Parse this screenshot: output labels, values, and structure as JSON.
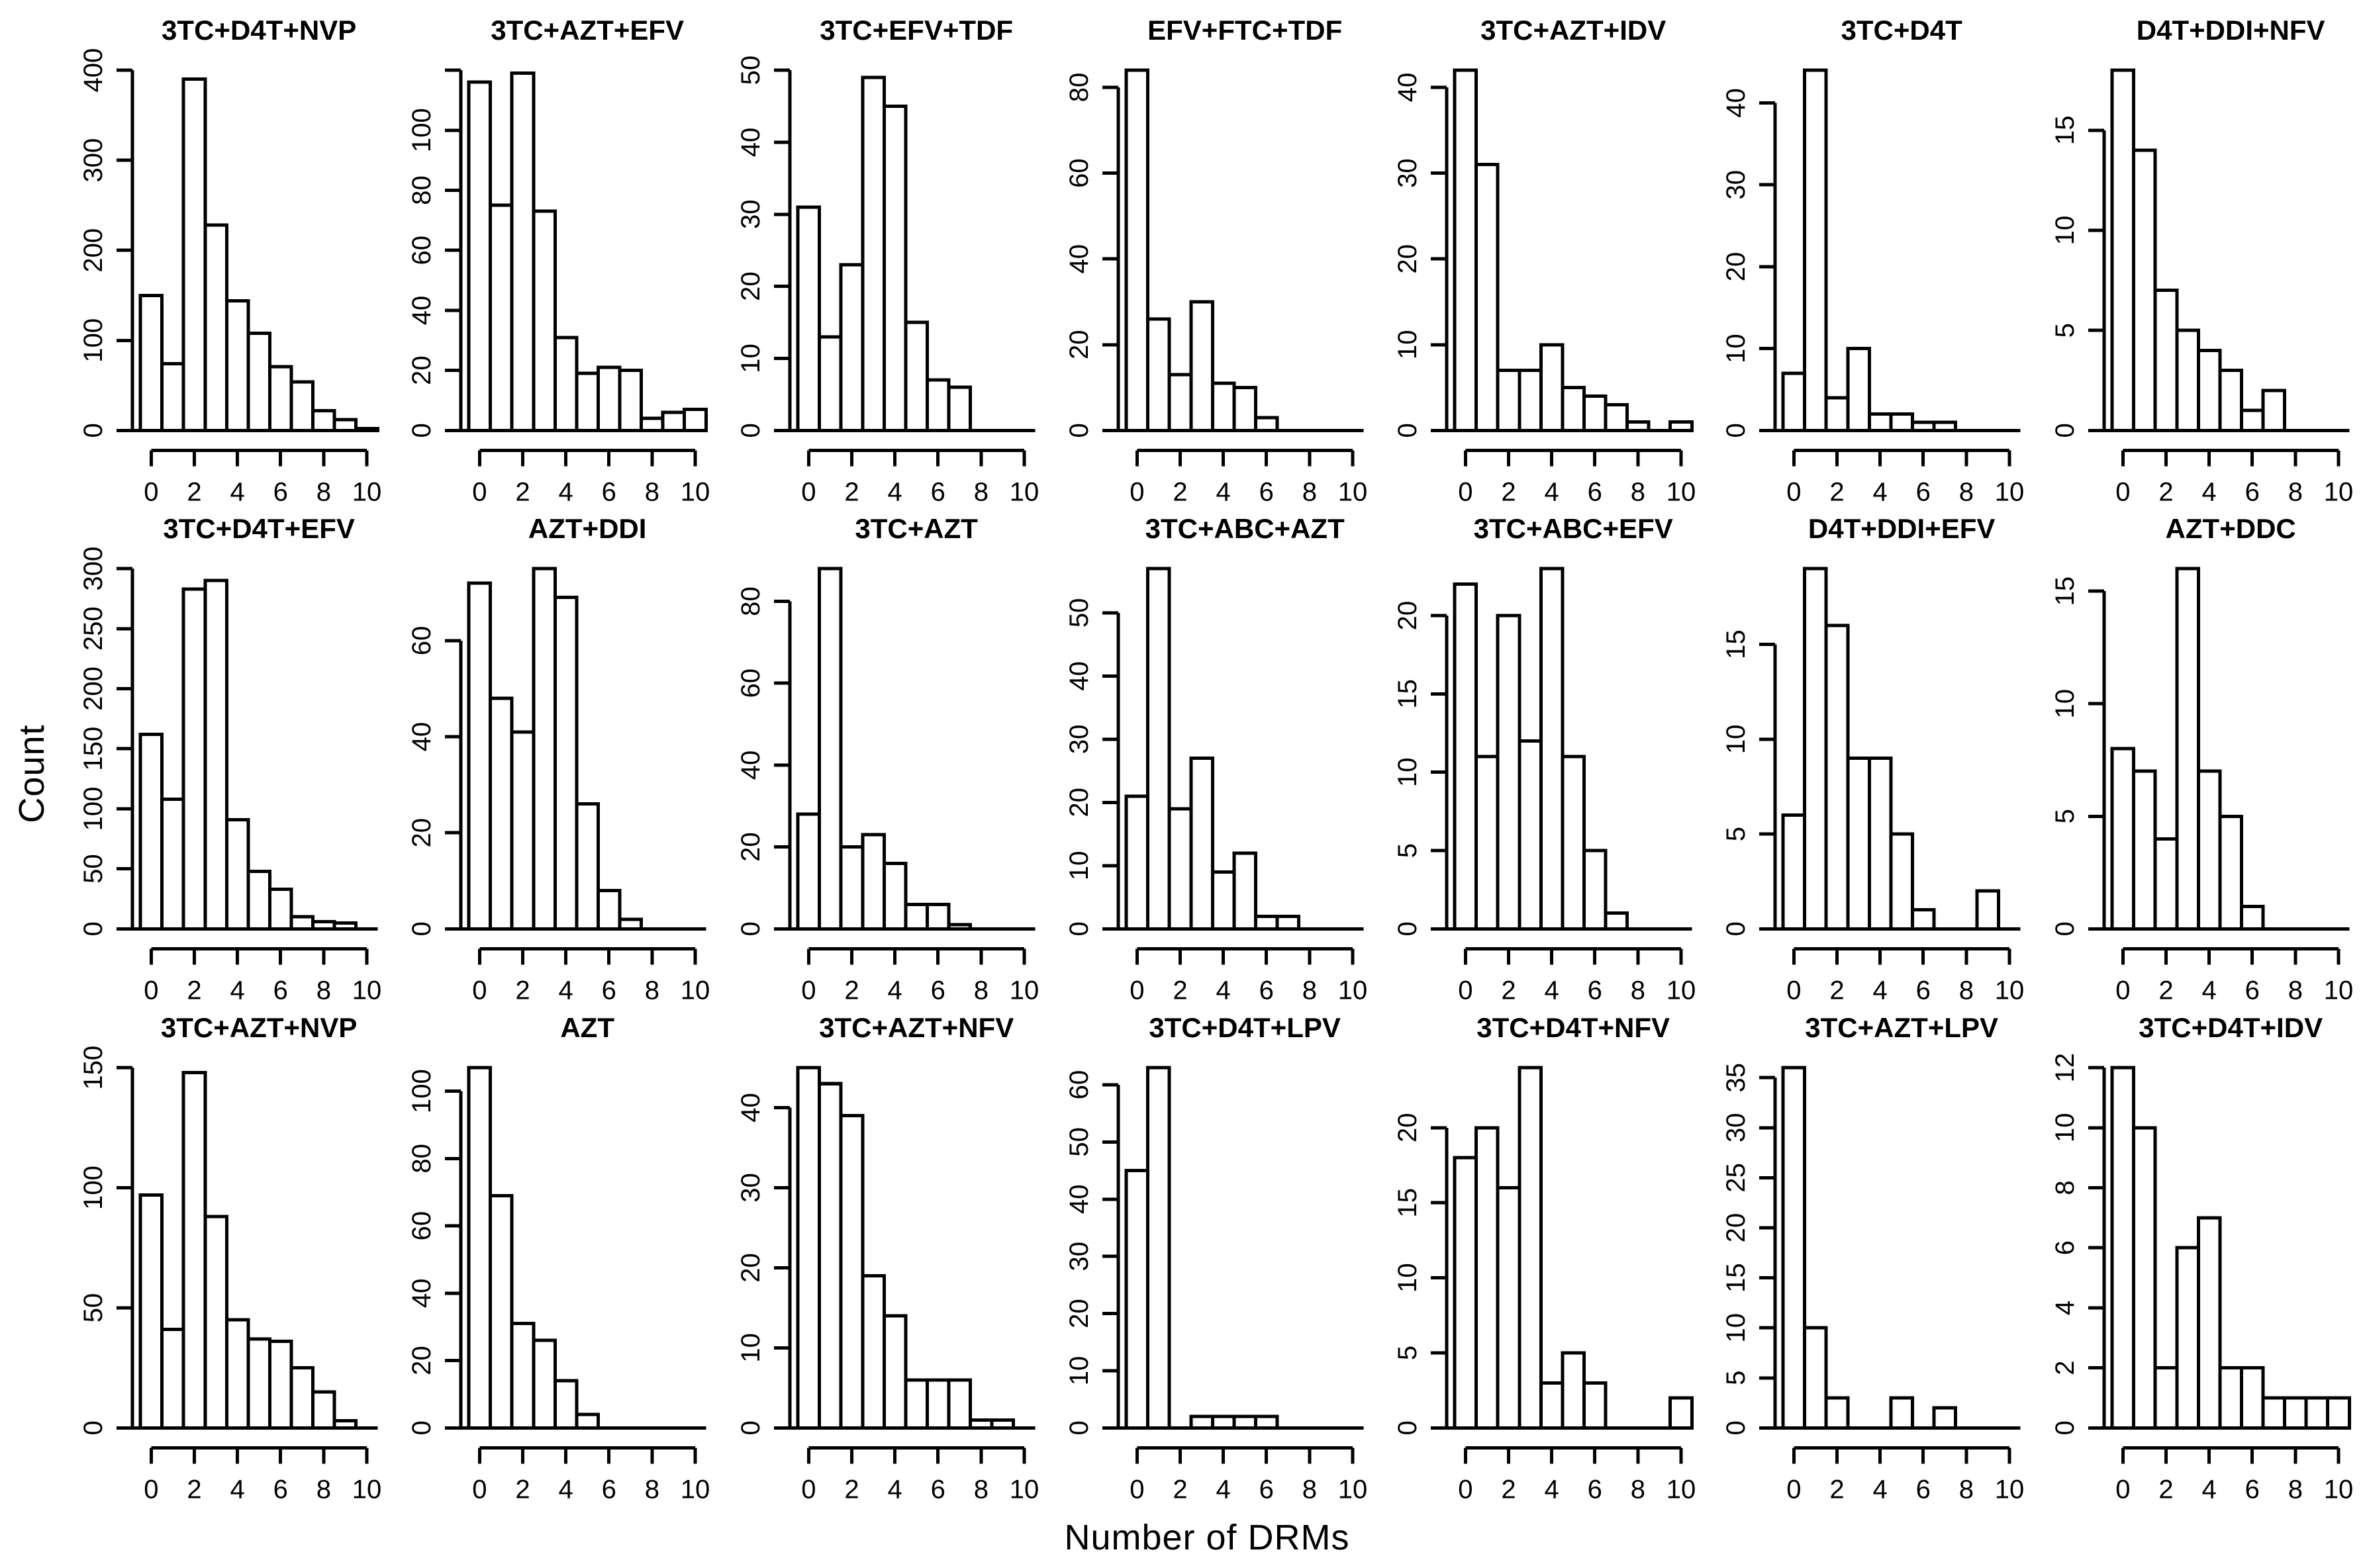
{
  "figure": {
    "ylabel": "Count",
    "xlabel": "Number of DRMs",
    "ink_color": "#000000",
    "background_color": "#ffffff"
  },
  "chart_data": {
    "type": "bar",
    "subtype": "histogram-small-multiples",
    "layout": {
      "rows": 3,
      "cols": 7,
      "grid": true
    },
    "x": [
      0,
      1,
      2,
      3,
      4,
      5,
      6,
      7,
      8,
      9,
      10
    ],
    "xticks": [
      0,
      2,
      4,
      6,
      8,
      10
    ],
    "xlabel": "Number of DRMs",
    "ylabel": "Count",
    "legend": "none",
    "panels": [
      {
        "title": "3TC+D4T+NVP",
        "yticks": [
          0,
          100,
          200,
          300,
          400
        ],
        "values": [
          150,
          74,
          390,
          228,
          144,
          108,
          71,
          54,
          22,
          12,
          2
        ]
      },
      {
        "title": "3TC+AZT+EFV",
        "yticks": [
          0,
          20,
          40,
          60,
          80,
          100
        ],
        "ytop": 120,
        "values": [
          116,
          75,
          119,
          73,
          31,
          19,
          21,
          20,
          4,
          6,
          7
        ]
      },
      {
        "title": "3TC+EFV+TDF",
        "yticks": [
          0,
          10,
          20,
          30,
          40,
          50
        ],
        "values": [
          31,
          13,
          23,
          49,
          45,
          15,
          7,
          6,
          0,
          0,
          0
        ]
      },
      {
        "title": "EFV+FTC+TDF",
        "yticks": [
          0,
          20,
          40,
          60,
          80
        ],
        "values": [
          84,
          26,
          13,
          30,
          11,
          10,
          3,
          0,
          0,
          0,
          0
        ]
      },
      {
        "title": "3TC+AZT+IDV",
        "yticks": [
          0,
          10,
          20,
          30,
          40
        ],
        "values": [
          42,
          31,
          7,
          7,
          10,
          5,
          4,
          3,
          1,
          0,
          1
        ]
      },
      {
        "title": "3TC+D4T",
        "yticks": [
          0,
          10,
          20,
          30,
          40
        ],
        "values": [
          7,
          44,
          4,
          10,
          2,
          2,
          1,
          1,
          0,
          0,
          0
        ]
      },
      {
        "title": "D4T+DDI+NFV",
        "yticks": [
          0,
          5,
          10,
          15
        ],
        "values": [
          18,
          14,
          7,
          5,
          4,
          3,
          1,
          2,
          0,
          0,
          0
        ]
      },
      {
        "title": "3TC+D4T+EFV",
        "yticks": [
          0,
          50,
          100,
          150,
          200,
          250,
          300
        ],
        "values": [
          162,
          108,
          283,
          290,
          91,
          48,
          33,
          10,
          6,
          5,
          0
        ]
      },
      {
        "title": "AZT+DDI",
        "yticks": [
          0,
          20,
          40,
          60
        ],
        "values": [
          72,
          48,
          41,
          75,
          69,
          26,
          8,
          2,
          0,
          0,
          0
        ]
      },
      {
        "title": "3TC+AZT",
        "yticks": [
          0,
          20,
          40,
          60,
          80
        ],
        "values": [
          28,
          88,
          20,
          23,
          16,
          6,
          6,
          1,
          0,
          0,
          0
        ]
      },
      {
        "title": "3TC+ABC+AZT",
        "yticks": [
          0,
          10,
          20,
          30,
          40,
          50
        ],
        "values": [
          21,
          57,
          19,
          27,
          9,
          12,
          2,
          2,
          0,
          0,
          0
        ]
      },
      {
        "title": "3TC+ABC+EFV",
        "yticks": [
          0,
          5,
          10,
          15,
          20
        ],
        "values": [
          22,
          11,
          20,
          12,
          23,
          11,
          5,
          1,
          0,
          0,
          0
        ]
      },
      {
        "title": "D4T+DDI+EFV",
        "yticks": [
          0,
          5,
          10,
          15
        ],
        "values": [
          6,
          19,
          16,
          9,
          9,
          5,
          1,
          0,
          0,
          2,
          0
        ]
      },
      {
        "title": "AZT+DDC",
        "yticks": [
          0,
          5,
          10,
          15
        ],
        "values": [
          8,
          7,
          4,
          16,
          7,
          5,
          1,
          0,
          0,
          0,
          0
        ]
      },
      {
        "title": "3TC+AZT+NVP",
        "yticks": [
          0,
          50,
          100,
          150
        ],
        "values": [
          97,
          41,
          148,
          88,
          45,
          37,
          36,
          25,
          15,
          3,
          0
        ]
      },
      {
        "title": "AZT",
        "yticks": [
          0,
          20,
          40,
          60,
          80,
          100
        ],
        "values": [
          107,
          69,
          31,
          26,
          14,
          4,
          0,
          0,
          0,
          0,
          0
        ]
      },
      {
        "title": "3TC+AZT+NFV",
        "yticks": [
          0,
          10,
          20,
          30,
          40
        ],
        "values": [
          45,
          43,
          39,
          19,
          14,
          6,
          6,
          6,
          1,
          1,
          0
        ]
      },
      {
        "title": "3TC+D4T+LPV",
        "yticks": [
          0,
          10,
          20,
          30,
          40,
          50,
          60
        ],
        "values": [
          45,
          63,
          0,
          2,
          2,
          2,
          2,
          0,
          0,
          0,
          0
        ]
      },
      {
        "title": "3TC+D4T+NFV",
        "yticks": [
          0,
          5,
          10,
          15,
          20
        ],
        "values": [
          18,
          20,
          16,
          24,
          3,
          5,
          3,
          0,
          0,
          0,
          2
        ]
      },
      {
        "title": "3TC+AZT+LPV",
        "yticks": [
          0,
          5,
          10,
          15,
          20,
          25,
          30,
          35
        ],
        "values": [
          36,
          10,
          3,
          0,
          0,
          3,
          0,
          2,
          0,
          0,
          0
        ]
      },
      {
        "title": "3TC+D4T+IDV",
        "yticks": [
          0,
          2,
          4,
          6,
          8,
          10,
          12
        ],
        "values": [
          12,
          10,
          2,
          6,
          7,
          2,
          2,
          1,
          1,
          1,
          1
        ]
      }
    ]
  }
}
